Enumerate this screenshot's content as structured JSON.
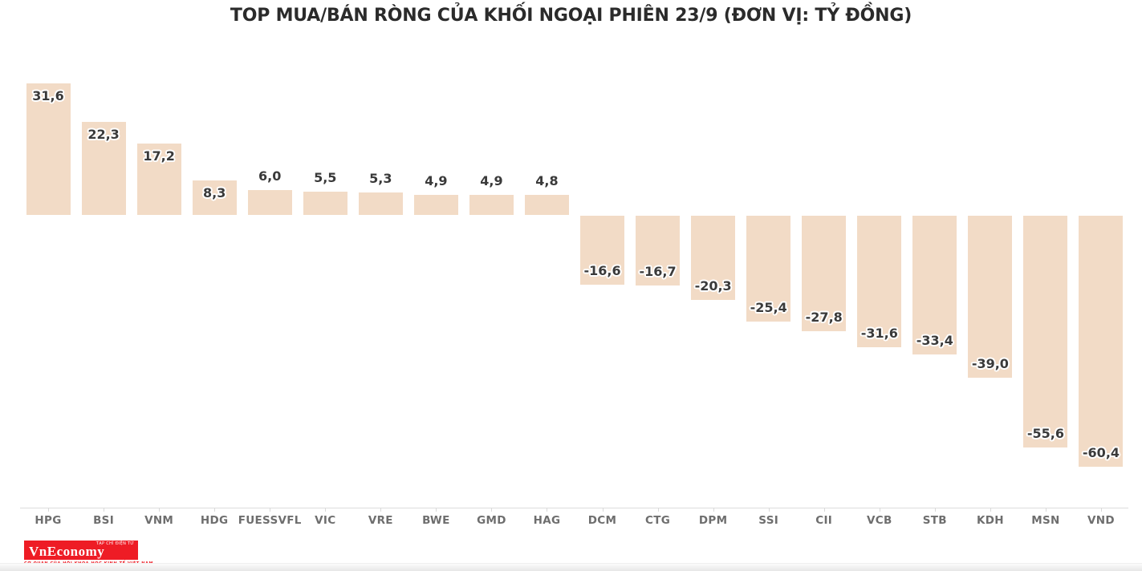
{
  "chart_data": {
    "type": "bar",
    "title": "TOP MUA/BÁN RÒNG CỦA KHỐI NGOẠI PHIÊN 23/9 (ĐƠN VỊ: TỶ ĐỒNG)",
    "unit": "tỷ đồng",
    "categories": [
      "HPG",
      "BSI",
      "VNM",
      "HDG",
      "FUESSVFL",
      "VIC",
      "VRE",
      "BWE",
      "GMD",
      "HAG",
      "DCM",
      "CTG",
      "DPM",
      "SSI",
      "CII",
      "VCB",
      "STB",
      "KDH",
      "MSN",
      "VND"
    ],
    "values": [
      31.6,
      22.3,
      17.2,
      8.3,
      6.0,
      5.5,
      5.3,
      4.9,
      4.9,
      4.8,
      -16.6,
      -16.7,
      -20.3,
      -25.4,
      -27.8,
      -31.6,
      -33.4,
      -39.0,
      -55.6,
      -60.4
    ],
    "value_labels": [
      "31,6",
      "22,3",
      "17,2",
      "8,3",
      "6,0",
      "5,5",
      "5,3",
      "4,9",
      "4,9",
      "4,8",
      "-16,6",
      "-16,7",
      "-20,3",
      "-25,4",
      "-27,8",
      "-31,6",
      "-33,4",
      "-39,0",
      "-55,6",
      "-60,4"
    ],
    "bar_color": "#f2dbc6",
    "value_label_color": "#3a3a3a",
    "axis_label_color": "#6e6e6e",
    "axis_line_color": "#dcdcdc",
    "background_color": "#ffffff",
    "grid": false,
    "legend": "none",
    "baseline": 0,
    "ylim": [
      -60.4,
      31.6
    ]
  },
  "logo": {
    "name": "VnEconomy",
    "box_small_text": "TẠP CHÍ ĐIỆN TỬ",
    "tagline": "CƠ QUAN CỦA HỘI KHOA HỌC KINH TẾ VIỆT NAM",
    "brand_color": "#ee1c25"
  }
}
